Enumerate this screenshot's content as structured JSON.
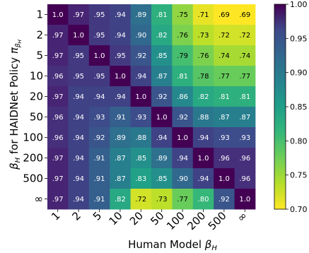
{
  "chart_data": {
    "type": "heatmap",
    "xlabel_text": "Human Model ",
    "xlabel_symbol": "β",
    "xlabel_sub": "H",
    "ylabel_text": " for HAIDNet Policy ",
    "ylabel_symbol": "β",
    "ylabel_sub": "H",
    "ylabel_pi": "π",
    "ylabel_pi_sub": "β",
    "ylabel_pi_subsub": "H",
    "x_categories": [
      "1",
      "2",
      "5",
      "10",
      "20",
      "50",
      "100",
      "200",
      "500",
      "∞"
    ],
    "y_categories": [
      "1",
      "2",
      "5",
      "10",
      "20",
      "50",
      "100",
      "200",
      "500",
      "∞"
    ],
    "values": [
      [
        1.0,
        0.97,
        0.95,
        0.94,
        0.89,
        0.81,
        0.75,
        0.71,
        0.69,
        0.69
      ],
      [
        0.97,
        1.0,
        0.95,
        0.94,
        0.9,
        0.82,
        0.76,
        0.73,
        0.72,
        0.72
      ],
      [
        0.97,
        0.95,
        1.0,
        0.95,
        0.92,
        0.85,
        0.79,
        0.76,
        0.74,
        0.74
      ],
      [
        0.96,
        0.95,
        0.95,
        1.0,
        0.94,
        0.87,
        0.81,
        0.78,
        0.77,
        0.77
      ],
      [
        0.97,
        0.94,
        0.94,
        0.94,
        1.0,
        0.92,
        0.86,
        0.82,
        0.81,
        0.81
      ],
      [
        0.96,
        0.94,
        0.93,
        0.91,
        0.93,
        1.0,
        0.92,
        0.88,
        0.87,
        0.87
      ],
      [
        0.96,
        0.94,
        0.92,
        0.89,
        0.88,
        0.94,
        1.0,
        0.94,
        0.93,
        0.93
      ],
      [
        0.97,
        0.94,
        0.91,
        0.87,
        0.85,
        0.89,
        0.94,
        1.0,
        0.96,
        0.96
      ],
      [
        0.97,
        0.94,
        0.91,
        0.87,
        0.83,
        0.85,
        0.9,
        0.94,
        1.0,
        0.96
      ],
      [
        0.97,
        0.94,
        0.91,
        0.82,
        0.72,
        0.73,
        0.77,
        0.8,
        0.92,
        1.0
      ]
    ],
    "labels": [
      [
        "1.0",
        ".97",
        ".95",
        ".94",
        ".89",
        ".81",
        ".75",
        ".71",
        ".69",
        ".69"
      ],
      [
        ".97",
        "1.0",
        ".95",
        ".94",
        ".90",
        ".82",
        ".76",
        ".73",
        ".72",
        ".72"
      ],
      [
        ".97",
        ".95",
        "1.0",
        ".95",
        ".92",
        ".85",
        ".79",
        ".76",
        ".74",
        ".74"
      ],
      [
        ".96",
        ".95",
        ".95",
        "1.0",
        ".94",
        ".87",
        ".81",
        ".78",
        ".77",
        ".77"
      ],
      [
        ".97",
        ".94",
        ".94",
        ".94",
        "1.0",
        ".92",
        ".86",
        ".82",
        ".81",
        ".81"
      ],
      [
        ".96",
        ".94",
        ".93",
        ".91",
        ".93",
        "1.0",
        ".92",
        ".88",
        ".87",
        ".87"
      ],
      [
        ".96",
        ".94",
        ".92",
        ".89",
        ".88",
        ".94",
        "1.0",
        ".94",
        ".93",
        ".93"
      ],
      [
        ".97",
        ".94",
        ".91",
        ".87",
        ".85",
        ".89",
        ".94",
        "1.0",
        ".96",
        ".96"
      ],
      [
        ".97",
        ".94",
        ".91",
        ".87",
        ".83",
        ".85",
        ".90",
        ".94",
        "1.0",
        ".96"
      ],
      [
        ".97",
        ".94",
        ".91",
        ".82",
        ".72",
        ".73",
        ".77",
        ".80",
        ".92",
        "1.0"
      ]
    ],
    "vmin": 0.7,
    "vmax": 1.0,
    "colormap": "viridis_r",
    "colorbar_ticks": [
      0.7,
      0.75,
      0.8,
      0.85,
      0.9,
      0.95,
      1.0
    ],
    "colorbar_tick_labels": [
      "0.70",
      "0.75",
      "0.80",
      "0.85",
      "0.90",
      "0.95",
      "1.00"
    ]
  }
}
